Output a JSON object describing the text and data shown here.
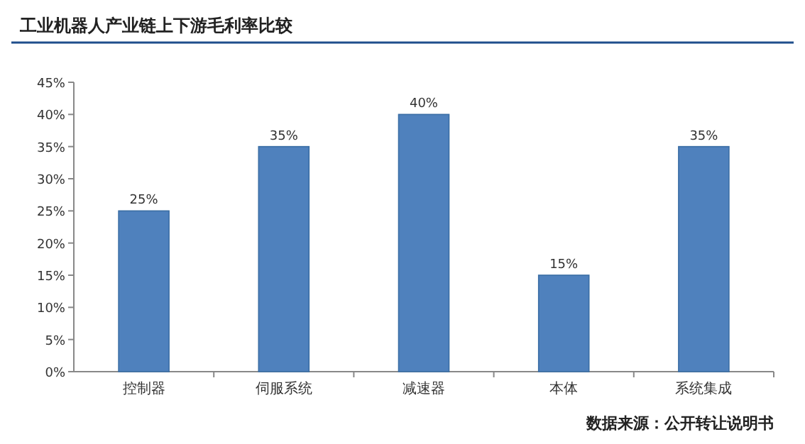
{
  "chart_data": {
    "type": "bar",
    "title": "工业机器人产业链上下游毛利率比较",
    "categories": [
      "控制器",
      "伺服系统",
      "减速器",
      "本体",
      "系统集成"
    ],
    "values": [
      25,
      35,
      40,
      15,
      35
    ],
    "value_labels": [
      "25%",
      "35%",
      "40%",
      "15%",
      "35%"
    ],
    "color": "#4f81bd",
    "ylim": [
      0,
      45
    ],
    "yticks": [
      {
        "value": 0,
        "label": "0%"
      },
      {
        "value": 5,
        "label": "5%"
      },
      {
        "value": 10,
        "label": "10%"
      },
      {
        "value": 15,
        "label": "15%"
      },
      {
        "value": 20,
        "label": "20%"
      },
      {
        "value": 25,
        "label": "25%"
      },
      {
        "value": 30,
        "label": "30%"
      },
      {
        "value": 35,
        "label": "35%"
      },
      {
        "value": 40,
        "label": "40%"
      },
      {
        "value": 45,
        "label": "45%"
      }
    ],
    "annotations": [
      "数据来源：公开转让说明书"
    ]
  }
}
